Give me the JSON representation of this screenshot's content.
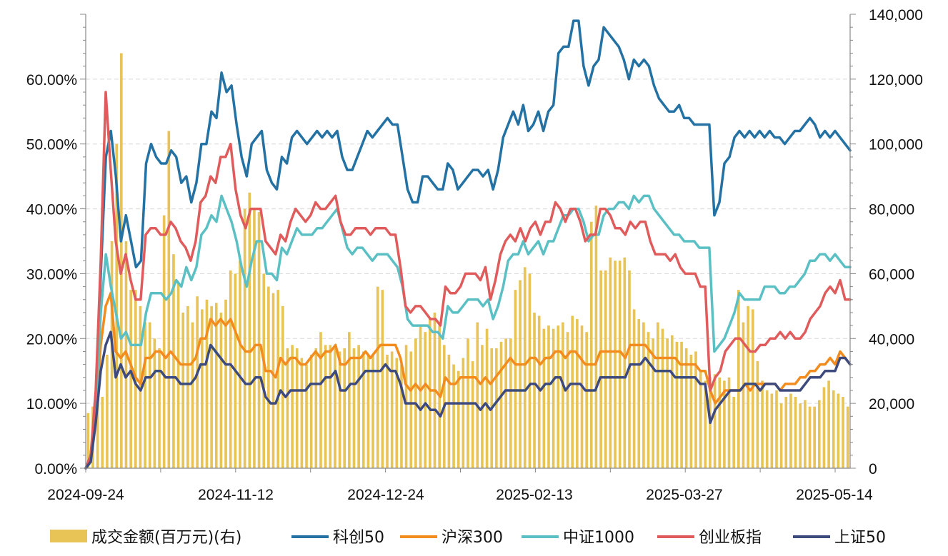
{
  "chart_data": {
    "type": "combo-bar-line",
    "title": "",
    "x_tick_labels": [
      "2024-09-24",
      "2024-11-12",
      "2024-12-24",
      "2025-02-13",
      "2025-03-27",
      "2025-05-14"
    ],
    "y_left": {
      "min": 0,
      "max": 0.7,
      "ticks": [
        "0.00%",
        "10.00%",
        "20.00%",
        "30.00%",
        "40.00%",
        "50.00%",
        "60.00%"
      ]
    },
    "y_right": {
      "min": 0,
      "max": 140000,
      "ticks": [
        "0",
        "20,000",
        "40,000",
        "60,000",
        "80,000",
        "100,000",
        "120,000",
        "140,000"
      ]
    },
    "bar_series": {
      "name": "成交金额(百万元)(右)",
      "axis": "right",
      "color": "#E8C456",
      "values": [
        17000,
        19000,
        20000,
        22000,
        35000,
        70000,
        100000,
        128000,
        70000,
        55000,
        55000,
        50000,
        45000,
        45000,
        40000,
        37000,
        78000,
        104000,
        66000,
        57000,
        48000,
        50000,
        45000,
        53000,
        49000,
        52000,
        50000,
        51000,
        48000,
        52000,
        61000,
        60000,
        64000,
        80000,
        85000,
        80000,
        79000,
        60000,
        56000,
        54000,
        55000,
        50000,
        37000,
        38000,
        37000,
        34000,
        32000,
        35000,
        37000,
        42000,
        38000,
        38000,
        37000,
        36000,
        37000,
        42000,
        37000,
        38000,
        36000,
        35000,
        35000,
        56000,
        55000,
        35000,
        36000,
        34000,
        32000,
        38000,
        36000,
        40000,
        44000,
        42000,
        46000,
        48000,
        44000,
        38000,
        35000,
        32000,
        30000,
        34000,
        40000,
        33000,
        45000,
        38000,
        43000,
        37000,
        37000,
        39000,
        40000,
        40000,
        55000,
        58000,
        62000,
        60000,
        48000,
        47000,
        43000,
        44000,
        43000,
        44000,
        45000,
        42000,
        47000,
        46000,
        44000,
        42000,
        76000,
        81000,
        61000,
        61000,
        65000,
        64000,
        64000,
        65000,
        61000,
        49000,
        46000,
        45000,
        42000,
        40000,
        45000,
        43000,
        40000,
        41000,
        39000,
        39000,
        37000,
        35000,
        36000,
        30000,
        27000,
        28000,
        29000,
        28000,
        27000,
        28000,
        22000,
        55000,
        45000,
        50000,
        49000,
        33000,
        27000,
        24000,
        23000,
        24000,
        20000,
        22000,
        23000,
        22000,
        20000,
        21000,
        19000,
        19000,
        21000,
        25000,
        27000,
        24000,
        23000,
        22000,
        19000
      ]
    },
    "series": [
      {
        "name": "科创50",
        "color": "#2472A4",
        "values": [
          0,
          0.02,
          0.1,
          0.3,
          0.48,
          0.52,
          0.45,
          0.35,
          0.39,
          0.35,
          0.31,
          0.32,
          0.47,
          0.5,
          0.48,
          0.47,
          0.47,
          0.49,
          0.48,
          0.44,
          0.45,
          0.41,
          0.44,
          0.5,
          0.5,
          0.55,
          0.54,
          0.61,
          0.58,
          0.59,
          0.53,
          0.48,
          0.45,
          0.5,
          0.51,
          0.52,
          0.46,
          0.44,
          0.43,
          0.48,
          0.47,
          0.51,
          0.52,
          0.51,
          0.5,
          0.51,
          0.52,
          0.51,
          0.52,
          0.51,
          0.52,
          0.48,
          0.46,
          0.46,
          0.48,
          0.5,
          0.52,
          0.51,
          0.52,
          0.53,
          0.54,
          0.53,
          0.53,
          0.48,
          0.43,
          0.41,
          0.41,
          0.45,
          0.45,
          0.44,
          0.43,
          0.43,
          0.47,
          0.46,
          0.43,
          0.44,
          0.45,
          0.46,
          0.46,
          0.45,
          0.46,
          0.43,
          0.46,
          0.51,
          0.53,
          0.55,
          0.53,
          0.56,
          0.52,
          0.53,
          0.55,
          0.52,
          0.55,
          0.56,
          0.64,
          0.65,
          0.65,
          0.69,
          0.69,
          0.62,
          0.59,
          0.62,
          0.63,
          0.68,
          0.67,
          0.66,
          0.65,
          0.63,
          0.6,
          0.63,
          0.62,
          0.63,
          0.62,
          0.59,
          0.57,
          0.56,
          0.55,
          0.55,
          0.56,
          0.54,
          0.54,
          0.53,
          0.53,
          0.53,
          0.53,
          0.39,
          0.41,
          0.47,
          0.48,
          0.51,
          0.52,
          0.51,
          0.52,
          0.51,
          0.52,
          0.51,
          0.52,
          0.51,
          0.51,
          0.5,
          0.51,
          0.52,
          0.52,
          0.53,
          0.54,
          0.53,
          0.51,
          0.52,
          0.51,
          0.52,
          0.51,
          0.5,
          0.49
        ]
      },
      {
        "name": "沪深300",
        "color": "#F28C1E",
        "values": [
          0,
          0.01,
          0.08,
          0.19,
          0.25,
          0.27,
          0.18,
          0.17,
          0.18,
          0.16,
          0.14,
          0.13,
          0.17,
          0.17,
          0.18,
          0.18,
          0.17,
          0.18,
          0.17,
          0.16,
          0.16,
          0.16,
          0.17,
          0.2,
          0.2,
          0.23,
          0.22,
          0.23,
          0.22,
          0.23,
          0.21,
          0.19,
          0.18,
          0.18,
          0.19,
          0.19,
          0.15,
          0.15,
          0.14,
          0.17,
          0.16,
          0.17,
          0.17,
          0.16,
          0.16,
          0.17,
          0.18,
          0.17,
          0.18,
          0.18,
          0.19,
          0.16,
          0.16,
          0.17,
          0.17,
          0.17,
          0.18,
          0.17,
          0.18,
          0.19,
          0.19,
          0.19,
          0.19,
          0.17,
          0.13,
          0.12,
          0.13,
          0.12,
          0.13,
          0.12,
          0.12,
          0.11,
          0.14,
          0.13,
          0.13,
          0.14,
          0.14,
          0.14,
          0.14,
          0.13,
          0.14,
          0.13,
          0.14,
          0.15,
          0.16,
          0.17,
          0.16,
          0.16,
          0.16,
          0.17,
          0.17,
          0.16,
          0.17,
          0.17,
          0.18,
          0.18,
          0.17,
          0.18,
          0.18,
          0.17,
          0.16,
          0.16,
          0.16,
          0.18,
          0.18,
          0.18,
          0.18,
          0.18,
          0.17,
          0.19,
          0.19,
          0.19,
          0.19,
          0.18,
          0.17,
          0.17,
          0.17,
          0.17,
          0.17,
          0.16,
          0.16,
          0.16,
          0.16,
          0.15,
          0.15,
          0.12,
          0.1,
          0.11,
          0.12,
          0.12,
          0.12,
          0.12,
          0.13,
          0.12,
          0.13,
          0.13,
          0.13,
          0.13,
          0.13,
          0.12,
          0.13,
          0.13,
          0.13,
          0.14,
          0.14,
          0.15,
          0.15,
          0.16,
          0.16,
          0.17,
          0.16,
          0.18,
          0.17,
          0.16
        ]
      },
      {
        "name": "中证1000",
        "color": "#5BC0C4",
        "values": [
          0,
          0.01,
          0.09,
          0.24,
          0.33,
          0.28,
          0.24,
          0.2,
          0.21,
          0.19,
          0.19,
          0.19,
          0.24,
          0.27,
          0.27,
          0.27,
          0.26,
          0.27,
          0.29,
          0.28,
          0.31,
          0.29,
          0.31,
          0.36,
          0.37,
          0.39,
          0.38,
          0.42,
          0.4,
          0.38,
          0.35,
          0.31,
          0.28,
          0.32,
          0.35,
          0.35,
          0.3,
          0.3,
          0.29,
          0.34,
          0.33,
          0.35,
          0.37,
          0.36,
          0.36,
          0.36,
          0.37,
          0.37,
          0.38,
          0.39,
          0.4,
          0.37,
          0.34,
          0.33,
          0.34,
          0.34,
          0.33,
          0.32,
          0.33,
          0.33,
          0.33,
          0.32,
          0.31,
          0.28,
          0.23,
          0.22,
          0.22,
          0.22,
          0.22,
          0.21,
          0.21,
          0.2,
          0.25,
          0.24,
          0.24,
          0.25,
          0.26,
          0.26,
          0.26,
          0.25,
          0.26,
          0.23,
          0.25,
          0.28,
          0.32,
          0.33,
          0.33,
          0.35,
          0.33,
          0.34,
          0.35,
          0.33,
          0.35,
          0.35,
          0.37,
          0.39,
          0.39,
          0.4,
          0.4,
          0.38,
          0.35,
          0.36,
          0.36,
          0.39,
          0.4,
          0.4,
          0.41,
          0.41,
          0.4,
          0.42,
          0.41,
          0.42,
          0.42,
          0.4,
          0.39,
          0.38,
          0.37,
          0.36,
          0.36,
          0.35,
          0.35,
          0.35,
          0.34,
          0.34,
          0.34,
          0.18,
          0.19,
          0.2,
          0.22,
          0.24,
          0.27,
          0.26,
          0.26,
          0.26,
          0.26,
          0.28,
          0.28,
          0.28,
          0.27,
          0.27,
          0.28,
          0.28,
          0.29,
          0.3,
          0.32,
          0.32,
          0.33,
          0.33,
          0.32,
          0.33,
          0.32,
          0.31,
          0.31
        ]
      },
      {
        "name": "创业板指",
        "color": "#E05C5C",
        "values": [
          0,
          0.02,
          0.12,
          0.32,
          0.58,
          0.46,
          0.35,
          0.3,
          0.33,
          0.29,
          0.26,
          0.26,
          0.36,
          0.37,
          0.37,
          0.36,
          0.36,
          0.38,
          0.37,
          0.35,
          0.34,
          0.32,
          0.35,
          0.41,
          0.42,
          0.45,
          0.44,
          0.48,
          0.48,
          0.5,
          0.43,
          0.39,
          0.37,
          0.4,
          0.4,
          0.4,
          0.35,
          0.34,
          0.33,
          0.36,
          0.35,
          0.38,
          0.4,
          0.39,
          0.38,
          0.39,
          0.41,
          0.4,
          0.4,
          0.41,
          0.42,
          0.38,
          0.36,
          0.36,
          0.37,
          0.37,
          0.37,
          0.36,
          0.37,
          0.37,
          0.37,
          0.36,
          0.36,
          0.31,
          0.25,
          0.24,
          0.25,
          0.25,
          0.24,
          0.23,
          0.23,
          0.22,
          0.28,
          0.27,
          0.27,
          0.28,
          0.3,
          0.3,
          0.3,
          0.29,
          0.31,
          0.26,
          0.29,
          0.33,
          0.35,
          0.36,
          0.35,
          0.37,
          0.35,
          0.37,
          0.38,
          0.36,
          0.38,
          0.38,
          0.41,
          0.4,
          0.38,
          0.4,
          0.4,
          0.38,
          0.35,
          0.36,
          0.36,
          0.4,
          0.4,
          0.39,
          0.37,
          0.37,
          0.36,
          0.38,
          0.37,
          0.38,
          0.38,
          0.35,
          0.33,
          0.33,
          0.33,
          0.32,
          0.33,
          0.31,
          0.3,
          0.3,
          0.3,
          0.28,
          0.28,
          0.12,
          0.14,
          0.15,
          0.18,
          0.19,
          0.2,
          0.2,
          0.19,
          0.18,
          0.18,
          0.19,
          0.19,
          0.2,
          0.2,
          0.21,
          0.2,
          0.21,
          0.2,
          0.2,
          0.21,
          0.23,
          0.24,
          0.25,
          0.27,
          0.28,
          0.27,
          0.29,
          0.26,
          0.26
        ]
      },
      {
        "name": "上证50",
        "color": "#3D4A7E",
        "values": [
          0,
          0.01,
          0.07,
          0.15,
          0.19,
          0.21,
          0.14,
          0.16,
          0.14,
          0.15,
          0.13,
          0.12,
          0.14,
          0.14,
          0.15,
          0.15,
          0.14,
          0.14,
          0.14,
          0.13,
          0.13,
          0.13,
          0.14,
          0.16,
          0.16,
          0.19,
          0.18,
          0.17,
          0.16,
          0.16,
          0.15,
          0.14,
          0.13,
          0.13,
          0.14,
          0.14,
          0.11,
          0.1,
          0.1,
          0.12,
          0.11,
          0.12,
          0.12,
          0.12,
          0.12,
          0.13,
          0.13,
          0.13,
          0.14,
          0.14,
          0.15,
          0.12,
          0.12,
          0.13,
          0.13,
          0.14,
          0.15,
          0.15,
          0.15,
          0.15,
          0.16,
          0.15,
          0.15,
          0.13,
          0.1,
          0.1,
          0.1,
          0.09,
          0.1,
          0.09,
          0.09,
          0.08,
          0.1,
          0.1,
          0.1,
          0.1,
          0.1,
          0.1,
          0.1,
          0.09,
          0.1,
          0.09,
          0.1,
          0.11,
          0.12,
          0.12,
          0.12,
          0.12,
          0.12,
          0.13,
          0.13,
          0.12,
          0.13,
          0.13,
          0.14,
          0.14,
          0.12,
          0.13,
          0.13,
          0.13,
          0.12,
          0.12,
          0.12,
          0.14,
          0.14,
          0.14,
          0.14,
          0.14,
          0.14,
          0.16,
          0.16,
          0.16,
          0.17,
          0.16,
          0.15,
          0.15,
          0.15,
          0.15,
          0.14,
          0.14,
          0.14,
          0.14,
          0.14,
          0.13,
          0.13,
          0.07,
          0.09,
          0.1,
          0.11,
          0.12,
          0.12,
          0.12,
          0.13,
          0.13,
          0.13,
          0.12,
          0.13,
          0.13,
          0.13,
          0.12,
          0.12,
          0.12,
          0.12,
          0.12,
          0.13,
          0.14,
          0.14,
          0.14,
          0.15,
          0.15,
          0.15,
          0.17,
          0.17,
          0.16
        ]
      }
    ],
    "gridlines": true,
    "legend_position": "bottom"
  }
}
